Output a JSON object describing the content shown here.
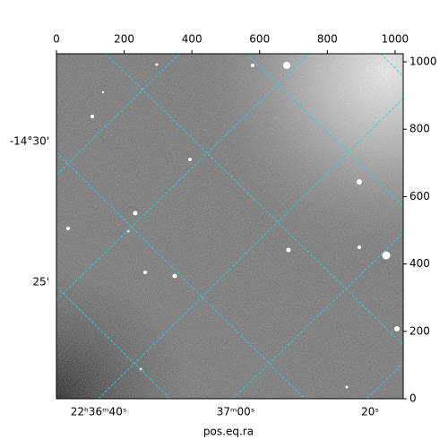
{
  "chart_data": {
    "type": "image",
    "xlim": [
      0,
      1024
    ],
    "ylim": [
      0,
      1024
    ],
    "xticks": [
      0,
      200,
      400,
      600,
      800,
      1000
    ],
    "yticks": [
      0,
      200,
      400,
      600,
      800,
      1000
    ],
    "ra_ticks": [
      "22ʰ36ᵐ40ˢ",
      "37ᵐ00ˢ",
      "20ˢ"
    ],
    "dec_ticks": [
      "-14°30'",
      "25'"
    ],
    "xlabel": "pos.eq.ra",
    "grid_color": "#2ad4d4"
  }
}
